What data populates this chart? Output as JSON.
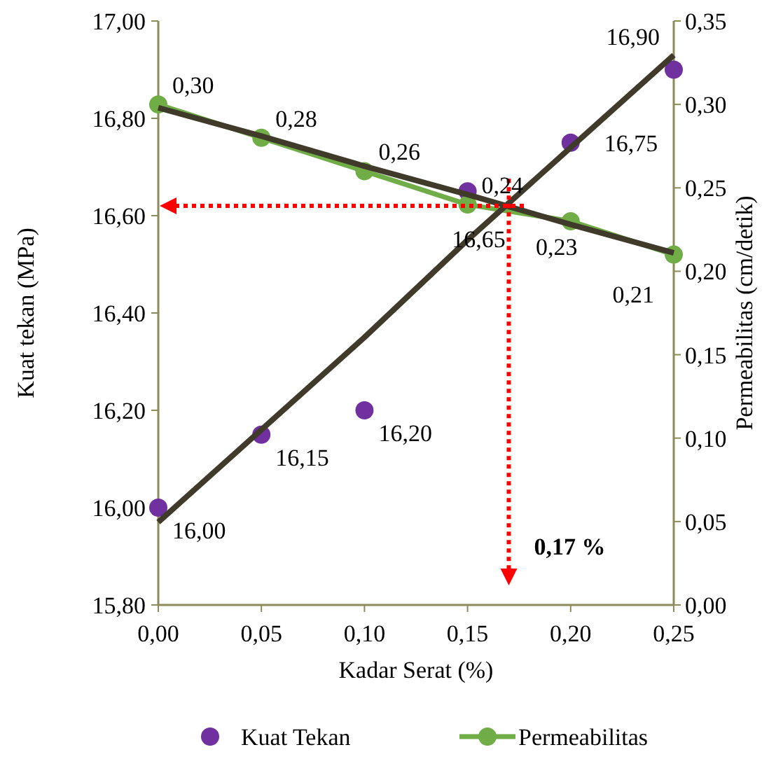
{
  "chart_data": {
    "type": "scatter",
    "xlabel": "Kadar Serat (%)",
    "ylabel": "Kuat tekan (MPa)",
    "y2label": "Permeabilitas (cm/detik)",
    "x": [
      0,
      0.05,
      0.1,
      0.15,
      0.2,
      0.25
    ],
    "series": [
      {
        "name": "Kuat Tekan",
        "type": "scatter",
        "color": "#7030a0",
        "values": [
          16.0,
          16.15,
          16.2,
          16.65,
          16.75,
          16.9
        ],
        "value_labels": [
          "16,00",
          "16,15",
          "16,20",
          "16,65",
          "16,75",
          "16,90"
        ],
        "marker": "circle"
      },
      {
        "name": "Permeabilitas",
        "type": "line",
        "axis": "y2",
        "color": "#70ad47",
        "values": [
          0.3,
          0.28,
          0.26,
          0.24,
          0.23,
          0.21
        ],
        "value_labels": [
          "0,30",
          "0,28",
          "0,26",
          "0,24",
          "0,23",
          "0,21"
        ],
        "marker": "circle"
      },
      {
        "type": "line",
        "color": "#3f3a2a",
        "values": [
          15.97,
          16.16,
          16.35,
          16.55,
          16.74,
          16.93
        ],
        "marker": "none"
      },
      {
        "type": "line",
        "axis": "y2",
        "color": "#3f3a2a",
        "values": [
          0.298,
          0.281,
          0.263,
          0.246,
          0.228,
          0.211
        ],
        "marker": "none"
      }
    ],
    "xlim": [
      0,
      0.25
    ],
    "xticks": [
      {
        "value": 0,
        "label": "0,00"
      },
      {
        "value": 0.05,
        "label": "0,05"
      },
      {
        "value": 0.1,
        "label": "0,10"
      },
      {
        "value": 0.15,
        "label": "0,15"
      },
      {
        "value": 0.2,
        "label": "0,20"
      },
      {
        "value": 0.25,
        "label": "0,25"
      }
    ],
    "ylim": [
      15.8,
      17.0
    ],
    "yticks": [
      {
        "value": 15.8,
        "label": "15,80"
      },
      {
        "value": 16.0,
        "label": "16,00"
      },
      {
        "value": 16.2,
        "label": "16,20"
      },
      {
        "value": 16.4,
        "label": "16,40"
      },
      {
        "value": 16.6,
        "label": "16,60"
      },
      {
        "value": 16.8,
        "label": "16,80"
      },
      {
        "value": 17.0,
        "label": "17,00"
      }
    ],
    "y2lim": [
      0,
      0.35
    ],
    "y2ticks": [
      {
        "value": 0,
        "label": "0,00"
      },
      {
        "value": 0.05,
        "label": "0,05"
      },
      {
        "value": 0.1,
        "label": "0,10"
      },
      {
        "value": 0.15,
        "label": "0,15"
      },
      {
        "value": 0.2,
        "label": "0,20"
      },
      {
        "value": 0.25,
        "label": "0,25"
      },
      {
        "value": 0.3,
        "label": "0,30"
      },
      {
        "value": 0.35,
        "label": "0,35"
      }
    ],
    "ref_lines": [
      {
        "axis": "x",
        "value": 0.17,
        "label": "0,17 %",
        "color": "#ff0000",
        "line_style": "dotted"
      },
      {
        "axis": "y",
        "value": 16.62,
        "color": "#ff0000",
        "line_style": "dotted"
      }
    ],
    "grid": false,
    "legend": "bottom"
  }
}
